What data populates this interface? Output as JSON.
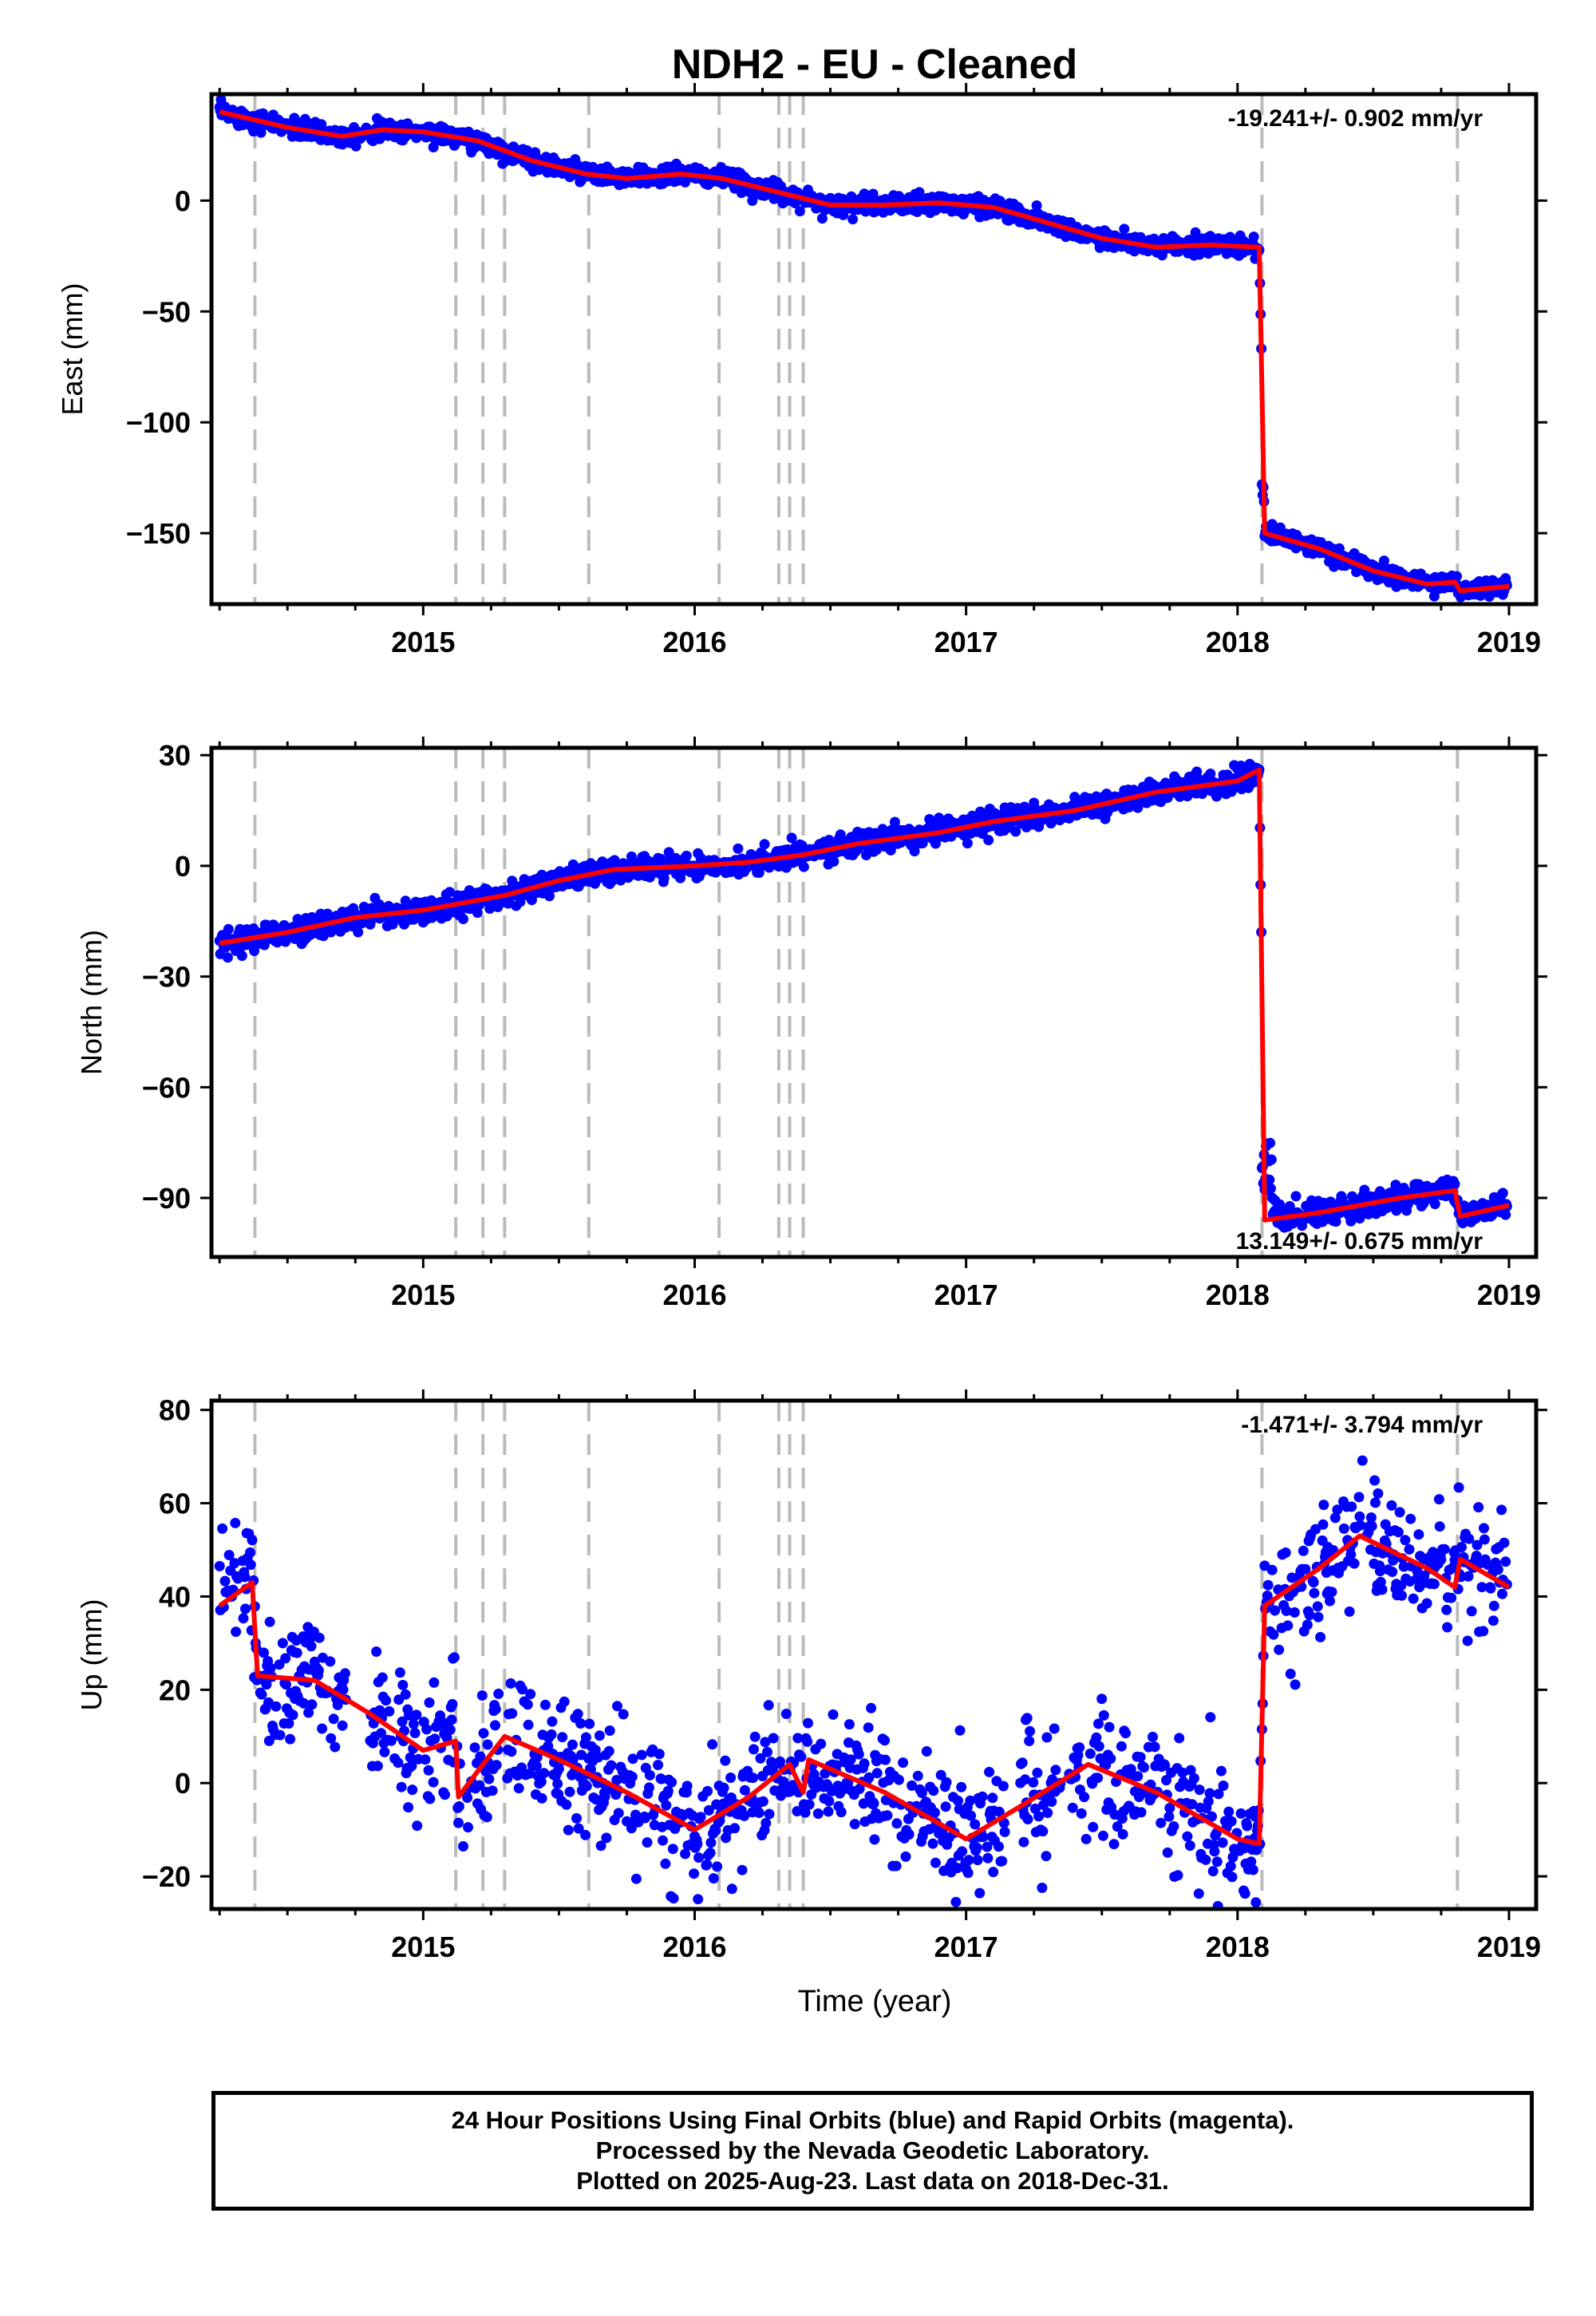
{
  "chart_data": {
    "type": "scatter",
    "title": "NDH2  - EU - Cleaned",
    "xlabel": "Time (year)",
    "x_ticks": [
      "2015",
      "2016",
      "2017",
      "2018",
      "2019"
    ],
    "xlim": [
      2014.22,
      2019.1
    ],
    "break_epochs": [
      2014.38,
      2015.12,
      2015.22,
      2015.3,
      2015.61,
      2016.09,
      2016.31,
      2016.35,
      2016.4,
      2018.09,
      2018.81
    ],
    "colors": {
      "points": "#0000ff",
      "model": "#ff0000",
      "breaks": "#bbbbbb"
    },
    "panels": [
      {
        "ylabel": "East (mm)",
        "ylim": [
          -182,
          48
        ],
        "y_ticks": [
          0,
          -50,
          -100,
          -150
        ],
        "rate_label": "-19.241+/- 0.902 mm/yr",
        "rate_position": "top-right",
        "trend_points": [
          [
            2014.25,
            40
          ],
          [
            2014.5,
            33
          ],
          [
            2014.7,
            29
          ],
          [
            2014.85,
            32
          ],
          [
            2015.0,
            31
          ],
          [
            2015.2,
            27
          ],
          [
            2015.4,
            18
          ],
          [
            2015.6,
            12
          ],
          [
            2015.75,
            10
          ],
          [
            2015.95,
            12
          ],
          [
            2016.1,
            10
          ],
          [
            2016.3,
            4
          ],
          [
            2016.5,
            -2
          ],
          [
            2016.7,
            -2
          ],
          [
            2016.9,
            -1
          ],
          [
            2017.1,
            -3
          ],
          [
            2017.3,
            -10
          ],
          [
            2017.5,
            -17
          ],
          [
            2017.7,
            -21
          ],
          [
            2017.9,
            -20
          ],
          [
            2018.08,
            -21
          ],
          [
            2018.1,
            -150
          ],
          [
            2018.3,
            -157
          ],
          [
            2018.5,
            -167
          ],
          [
            2018.7,
            -173
          ],
          [
            2018.8,
            -172
          ],
          [
            2018.82,
            -176
          ],
          [
            2019.0,
            -174
          ]
        ],
        "scatter_sd": 2
      },
      {
        "ylabel": "North (mm)",
        "ylim": [
          -106,
          32
        ],
        "y_ticks": [
          30,
          0,
          -30,
          -60,
          -90
        ],
        "rate_label": "13.149+/- 0.675 mm/yr",
        "rate_position": "bottom-right",
        "trend_points": [
          [
            2014.25,
            -21
          ],
          [
            2014.5,
            -18
          ],
          [
            2014.75,
            -14
          ],
          [
            2015.0,
            -12
          ],
          [
            2015.3,
            -8
          ],
          [
            2015.5,
            -4
          ],
          [
            2015.7,
            -1
          ],
          [
            2016.0,
            0
          ],
          [
            2016.2,
            1
          ],
          [
            2016.4,
            3
          ],
          [
            2016.6,
            6
          ],
          [
            2016.9,
            9
          ],
          [
            2017.1,
            12
          ],
          [
            2017.4,
            15
          ],
          [
            2017.7,
            20
          ],
          [
            2018.0,
            23
          ],
          [
            2018.08,
            26
          ],
          [
            2018.1,
            -96
          ],
          [
            2018.3,
            -94
          ],
          [
            2018.6,
            -90
          ],
          [
            2018.8,
            -88
          ],
          [
            2018.82,
            -95
          ],
          [
            2019.0,
            -92
          ]
        ],
        "scatter_sd": 1.5
      },
      {
        "ylabel": "Up (mm)",
        "ylim": [
          -27,
          82
        ],
        "y_ticks": [
          80,
          60,
          40,
          20,
          0,
          -20
        ],
        "rate_label": "-1.471+/- 3.794 mm/yr",
        "rate_position": "top-right",
        "trend_points": [
          [
            2014.25,
            38
          ],
          [
            2014.37,
            43
          ],
          [
            2014.39,
            23
          ],
          [
            2014.6,
            22
          ],
          [
            2014.8,
            15
          ],
          [
            2015.0,
            7
          ],
          [
            2015.12,
            9
          ],
          [
            2015.13,
            -3
          ],
          [
            2015.22,
            4
          ],
          [
            2015.3,
            10
          ],
          [
            2015.5,
            5
          ],
          [
            2015.75,
            -2
          ],
          [
            2016.0,
            -10
          ],
          [
            2016.2,
            -3
          ],
          [
            2016.35,
            4
          ],
          [
            2016.4,
            -2
          ],
          [
            2016.42,
            5
          ],
          [
            2016.7,
            -2
          ],
          [
            2017.0,
            -12
          ],
          [
            2017.2,
            -5
          ],
          [
            2017.45,
            4
          ],
          [
            2017.7,
            -2
          ],
          [
            2018.0,
            -12
          ],
          [
            2018.08,
            -13
          ],
          [
            2018.1,
            38
          ],
          [
            2018.3,
            46
          ],
          [
            2018.45,
            53
          ],
          [
            2018.7,
            46
          ],
          [
            2018.8,
            42
          ],
          [
            2018.82,
            48
          ],
          [
            2019.0,
            42
          ]
        ],
        "scatter_sd": 7
      }
    ]
  },
  "footer": {
    "line1": "24 Hour Positions Using Final Orbits (blue) and Rapid Orbits (magenta).",
    "line2": "Processed by the Nevada Geodetic Laboratory.",
    "line3": "Plotted on 2025-Aug-23. Last data on 2018-Dec-31."
  }
}
